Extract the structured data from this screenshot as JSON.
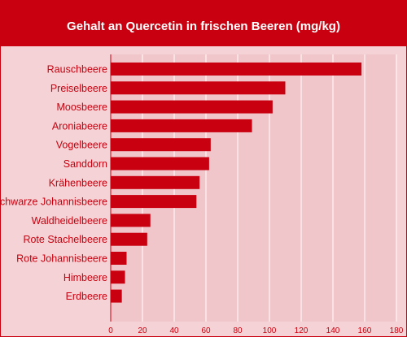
{
  "colors": {
    "accent": "#c8000f",
    "plot_background": "#f1c6ca",
    "frame_background": "#f5d2d5",
    "grid": "#ffffff"
  },
  "chart_data": {
    "type": "bar",
    "orientation": "horizontal",
    "title": "Gehalt an Quercetin in frischen Beeren (mg/kg)",
    "xlabel": "",
    "ylabel": "",
    "xlim": [
      0,
      180
    ],
    "x_ticks": [
      0,
      20,
      40,
      60,
      80,
      100,
      120,
      140,
      160,
      180
    ],
    "grid": true,
    "legend": "none",
    "categories": [
      "Rauschbeere",
      "Preiselbeere",
      "Moosbeere",
      "Aroniabeere",
      "Vogelbeere",
      "Sanddorn",
      "Krähenbeere",
      "Schwarze Johannisbeere",
      "Waldheidelbeere",
      "Rote Stachelbeere",
      "Rote Johannisbeere",
      "Himbeere",
      "Erdbeere"
    ],
    "values": [
      158,
      110,
      102,
      89,
      63,
      62,
      56,
      54,
      25,
      23,
      10,
      9,
      7
    ]
  }
}
